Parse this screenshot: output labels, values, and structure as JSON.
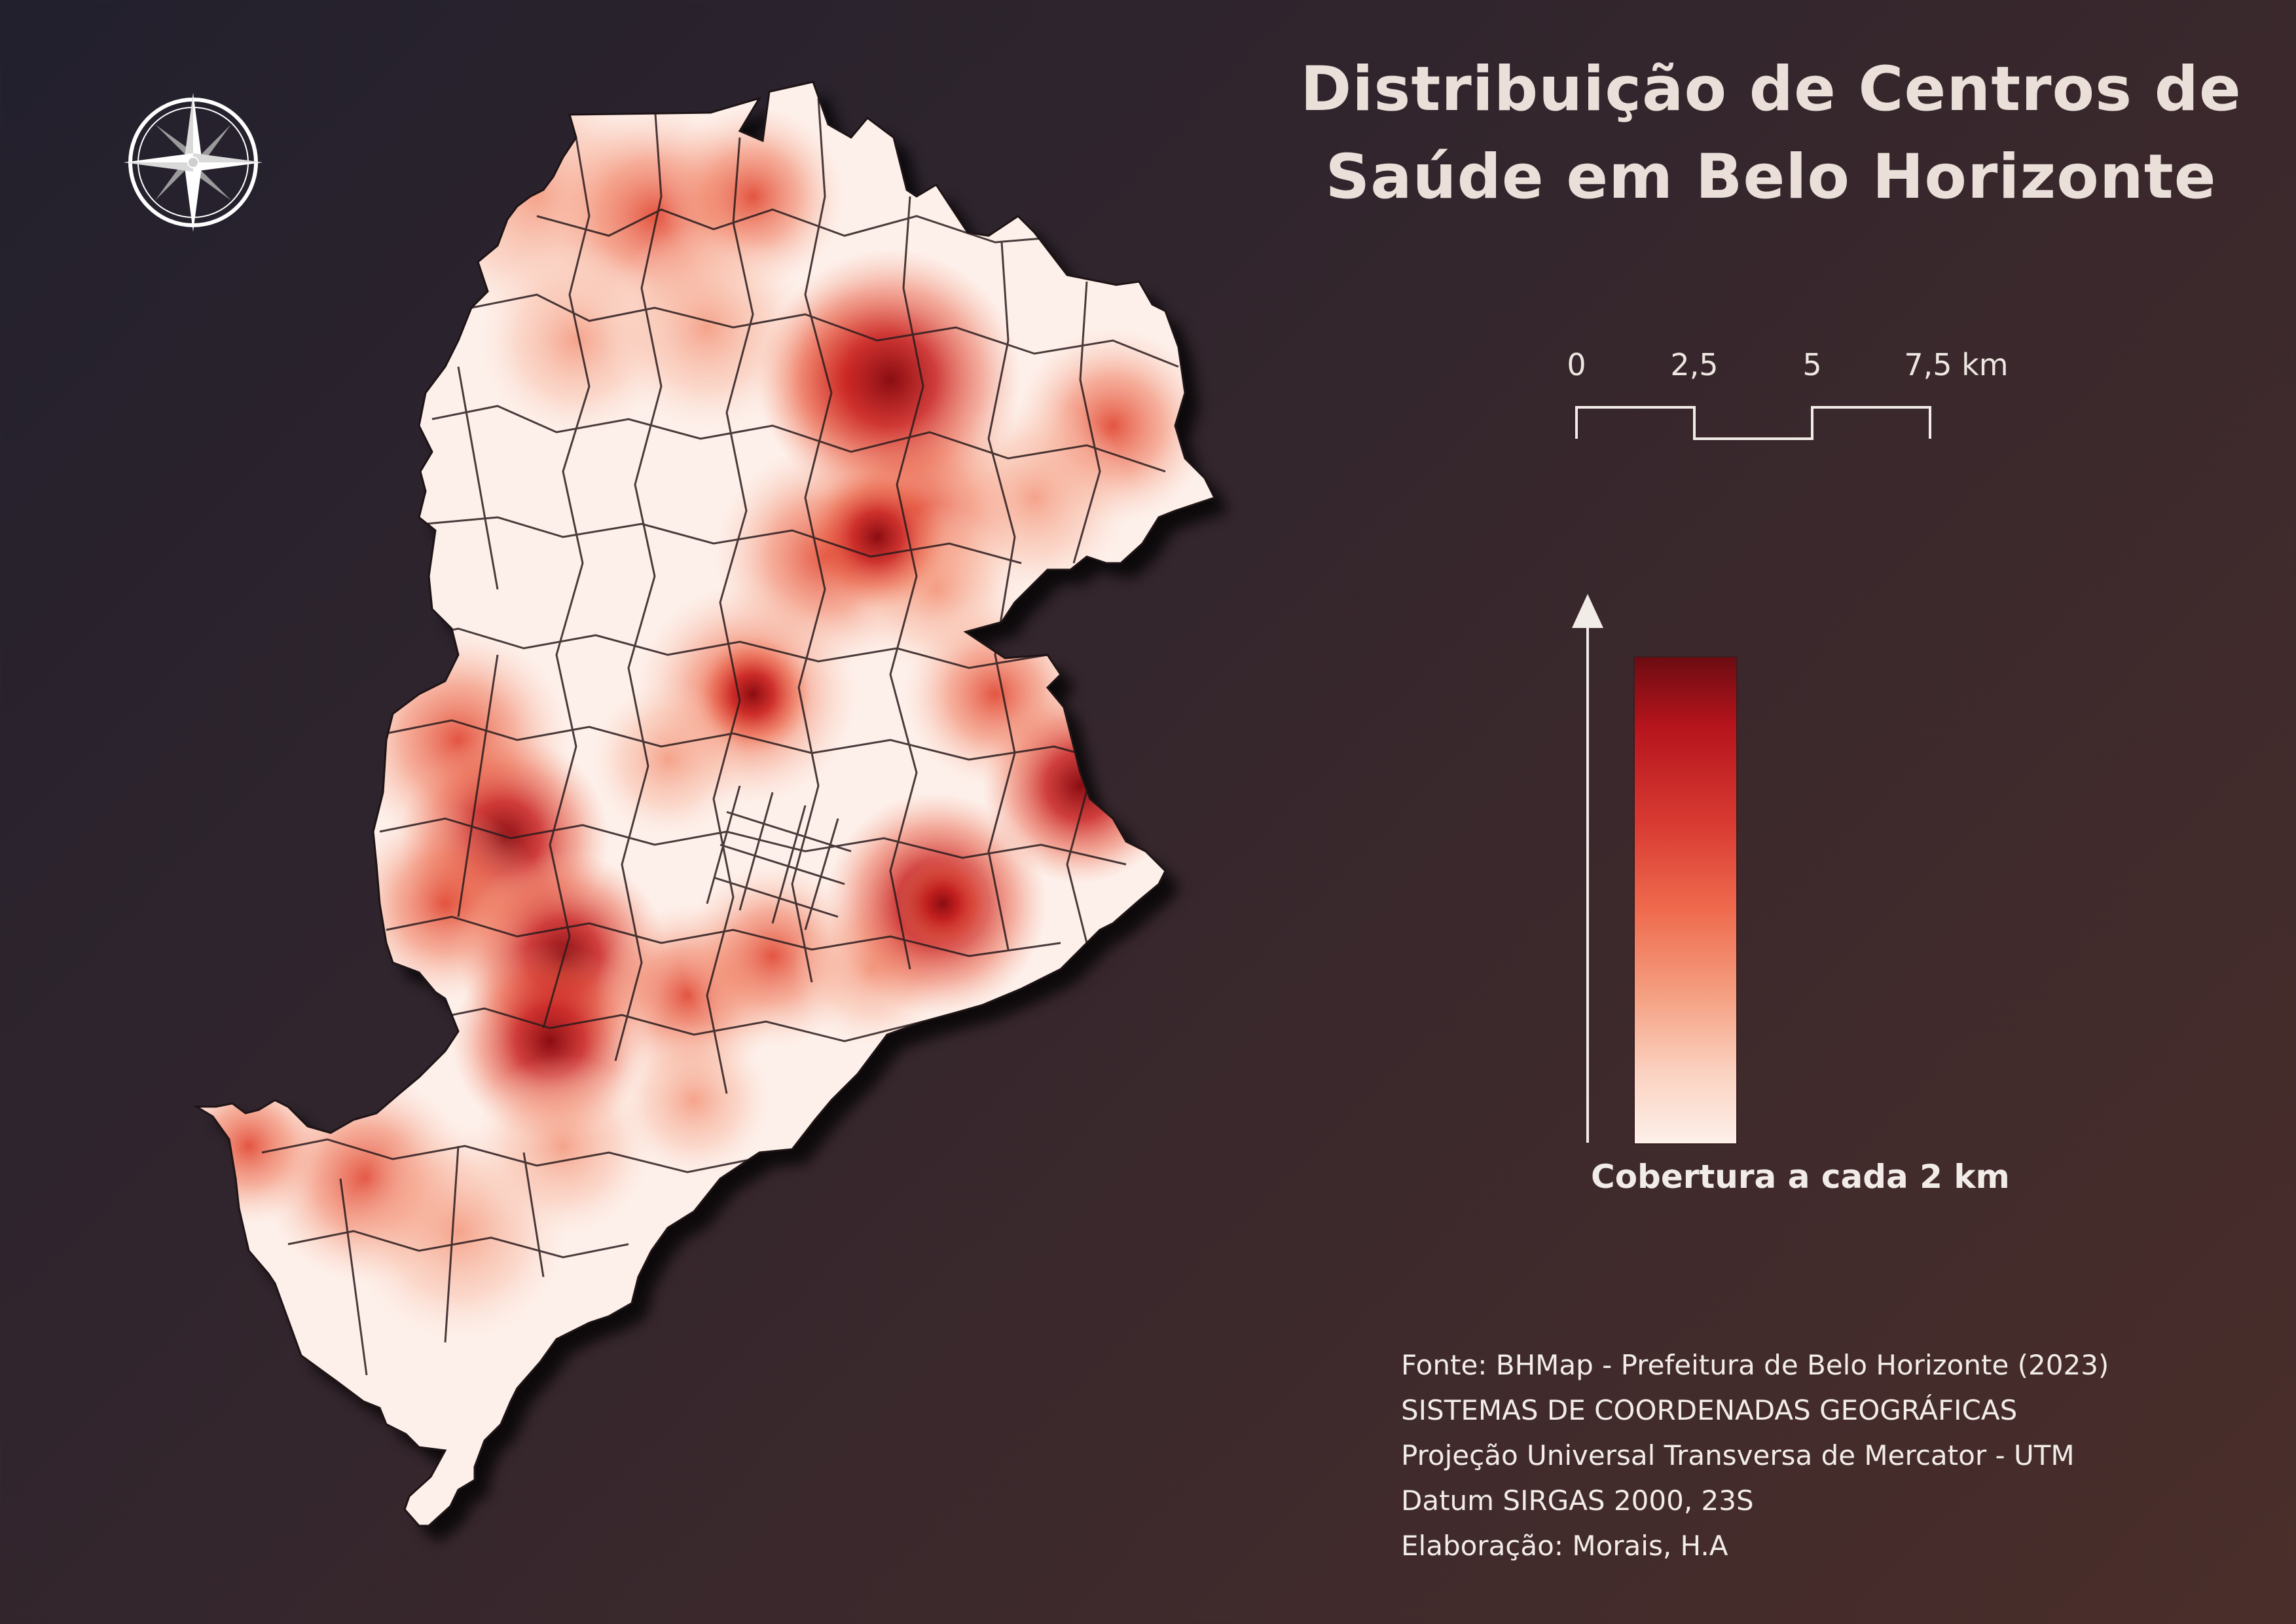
{
  "title": {
    "line1": "Distribuição de Centros de",
    "line2": "Saúde em Belo Horizonte"
  },
  "compass": {
    "icon": "compass-rose-icon"
  },
  "scale_bar": {
    "labels": [
      "0",
      "2,5",
      "5",
      "7,5 km"
    ],
    "values_km": [
      0,
      2.5,
      5,
      7.5
    ]
  },
  "legend": {
    "title": "Cobertura a cada 2 km",
    "color_high": "#6d0c12",
    "color_mid": "#e5432f",
    "color_low": "#fdf0ea"
  },
  "credits": {
    "source": "Fonte: BHMap - Prefeitura de Belo Horizonte (2023)",
    "system": "SISTEMAS DE COORDENADAS GEOGRÁFICAS",
    "projection": "Projeção Universal Transversa de Mercator - UTM",
    "datum": "Datum SIRGAS 2000, 23S",
    "author": "Elaboração: Morais, H.A"
  }
}
